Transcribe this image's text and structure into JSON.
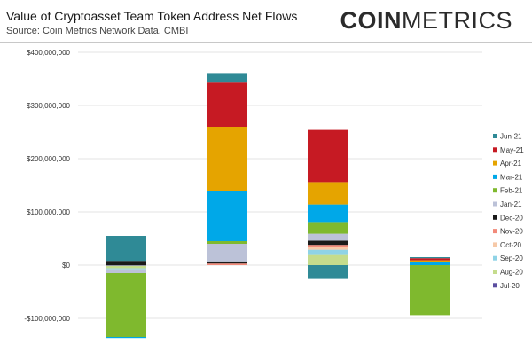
{
  "header": {
    "title": "Value of Cryptoasset Team Token Address Net Flows",
    "subtitle": "Source: Coin Metrics Network Data, CMBI",
    "brand_strong": "COIN",
    "brand_light": "METRICS"
  },
  "chart_data": {
    "type": "bar",
    "stacked": true,
    "categories": [
      "",
      "",
      "",
      ""
    ],
    "ylim": [
      -140000000,
      400000000
    ],
    "yticks": [
      -100000000,
      0,
      100000000,
      200000000,
      300000000,
      400000000
    ],
    "ytick_labels": [
      "-$100,000,000",
      "$0",
      "$100,000,000",
      "$200,000,000",
      "$300,000,000",
      "$400,000,000"
    ],
    "grid": true,
    "legend_position": "right",
    "series": [
      {
        "name": "Jul-20",
        "color": "#5b4ea0",
        "values": [
          -1000000,
          0,
          0,
          0
        ]
      },
      {
        "name": "Aug-20",
        "color": "#c5dc8c",
        "values": [
          -5000000,
          0,
          19000000,
          0
        ]
      },
      {
        "name": "Sep-20",
        "color": "#8fd3e6",
        "values": [
          -2000000,
          0,
          10000000,
          0
        ]
      },
      {
        "name": "Oct-20",
        "color": "#f6c9a8",
        "values": [
          -1000000,
          0,
          5000000,
          0
        ]
      },
      {
        "name": "Nov-20",
        "color": "#f28a7a",
        "values": [
          -1000000,
          3000000,
          4000000,
          0
        ]
      },
      {
        "name": "Dec-20",
        "color": "#1a1a1a",
        "values": [
          8000000,
          4000000,
          8000000,
          0
        ]
      },
      {
        "name": "Jan-21",
        "color": "#bcc2d8",
        "values": [
          -5000000,
          33000000,
          13000000,
          0
        ]
      },
      {
        "name": "Feb-21",
        "color": "#7fb92e",
        "values": [
          -120000000,
          5000000,
          22000000,
          -94000000
        ]
      },
      {
        "name": "Mar-21",
        "color": "#00a8e8",
        "values": [
          -2000000,
          95000000,
          33000000,
          5000000
        ]
      },
      {
        "name": "Apr-21",
        "color": "#e5a400",
        "values": [
          0,
          120000000,
          42000000,
          4000000
        ]
      },
      {
        "name": "May-21",
        "color": "#c61a23",
        "values": [
          0,
          83000000,
          98000000,
          4000000
        ]
      },
      {
        "name": "Jun-21",
        "color": "#2f8a96",
        "values": [
          47000000,
          18000000,
          -26000000,
          2000000
        ]
      }
    ]
  }
}
